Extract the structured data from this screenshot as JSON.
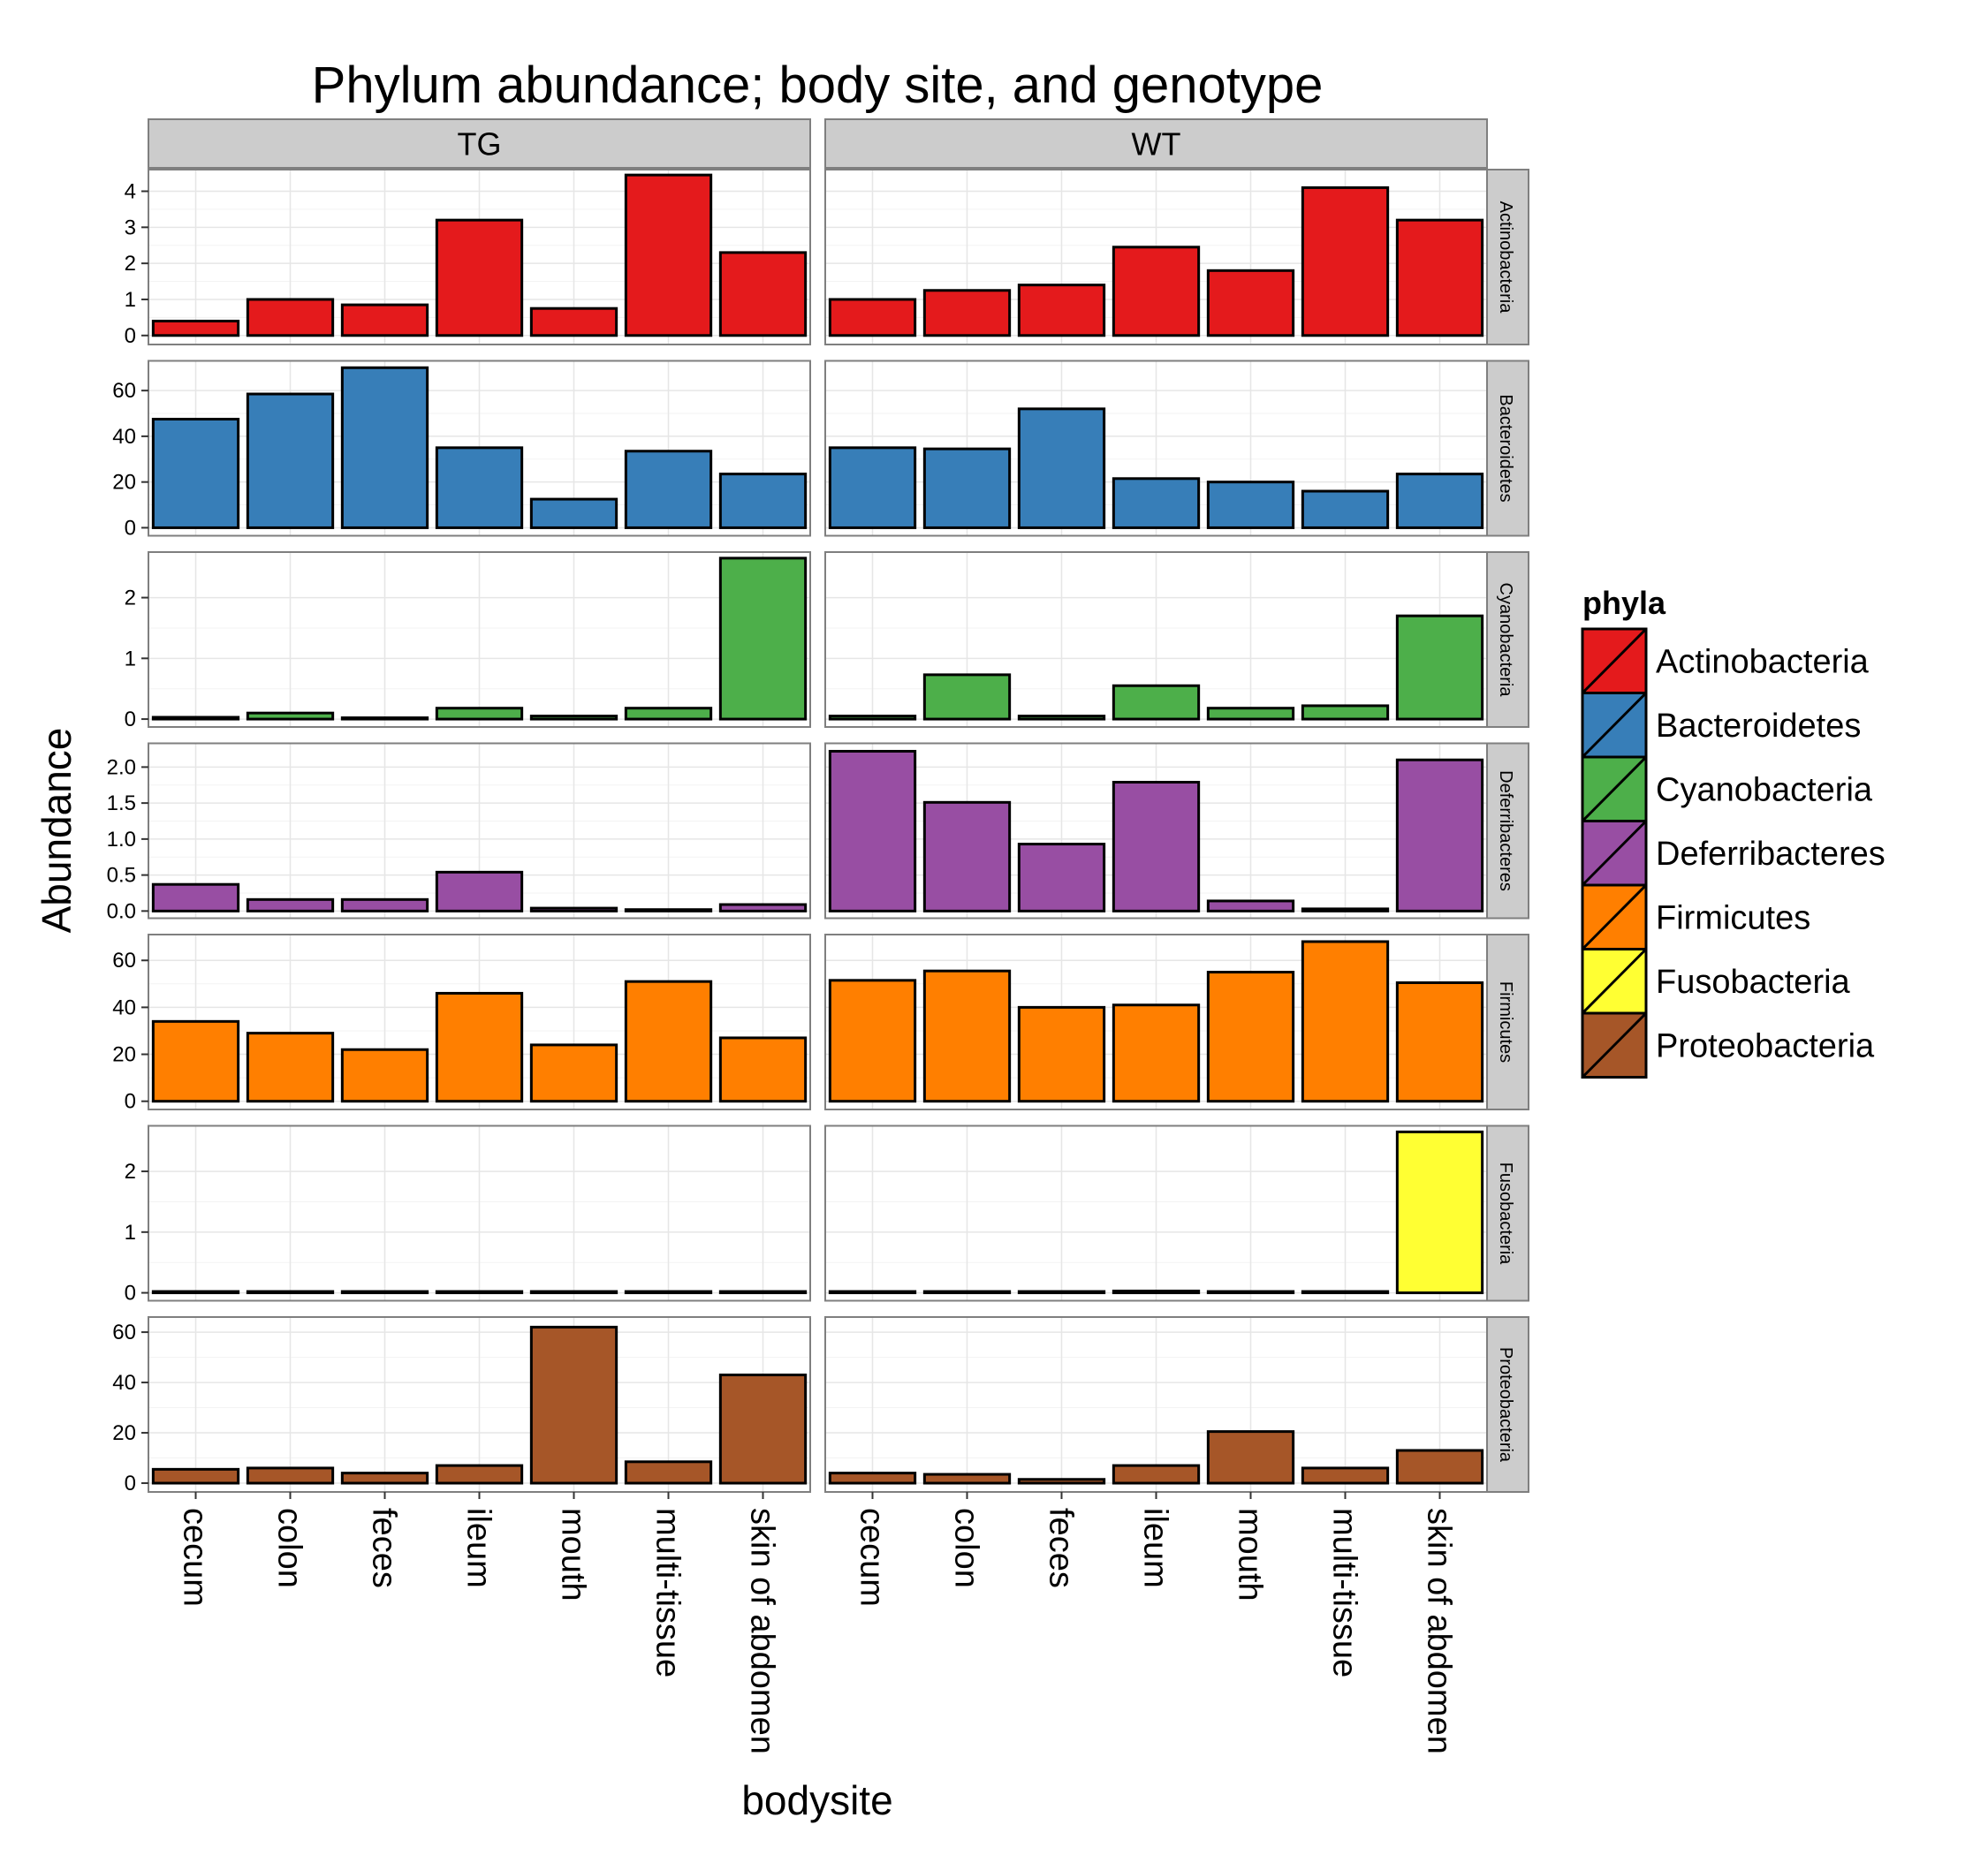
{
  "chart_data": {
    "type": "bar",
    "title": "Phylum abundance; body site, and genotype",
    "xlabel": "bodysite",
    "ylabel": "Abundance",
    "grid": true,
    "legend_position": "right",
    "legend_title": "phyla",
    "categories": [
      "cecum",
      "colon",
      "feces",
      "ileum",
      "mouth",
      "multi-tissue",
      "skin of abdomen"
    ],
    "genotypes": [
      "TG",
      "WT"
    ],
    "facets": [
      {
        "phylum": "Actinobacteria",
        "color": "#e41a1c",
        "ylim": [
          -0.25,
          4.6
        ],
        "yticks": [
          0,
          1,
          2,
          3,
          4
        ],
        "ytick_labels": [
          "0",
          "1",
          "2",
          "3",
          "4"
        ],
        "series": [
          {
            "name": "TG",
            "values": [
              0.4,
              1.0,
              0.85,
              3.2,
              0.75,
              4.45,
              2.3
            ]
          },
          {
            "name": "WT",
            "values": [
              1.0,
              1.25,
              1.4,
              2.45,
              1.8,
              4.1,
              3.2
            ]
          }
        ]
      },
      {
        "phylum": "Bacteroidetes",
        "color": "#377eb8",
        "ylim": [
          -3.5,
          73
        ],
        "yticks": [
          0,
          20,
          40,
          60
        ],
        "ytick_labels": [
          "0",
          "20",
          "40",
          "60"
        ],
        "series": [
          {
            "name": "TG",
            "values": [
              47.5,
              58.5,
              70,
              35,
              12.5,
              33.5,
              23.5
            ]
          },
          {
            "name": "WT",
            "values": [
              35,
              34.5,
              52,
              21.5,
              20,
              16,
              23.5
            ]
          }
        ]
      },
      {
        "phylum": "Cyanobacteria",
        "color": "#4daf4a",
        "ylim": [
          -0.13,
          2.75
        ],
        "yticks": [
          0,
          1,
          2
        ],
        "ytick_labels": [
          "0",
          "1",
          "2"
        ],
        "series": [
          {
            "name": "TG",
            "values": [
              0.03,
              0.1,
              0.02,
              0.18,
              0.05,
              0.18,
              2.65
            ]
          },
          {
            "name": "WT",
            "values": [
              0.05,
              0.73,
              0.05,
              0.55,
              0.18,
              0.22,
              1.7
            ]
          }
        ]
      },
      {
        "phylum": "Deferribacteres",
        "color": "#984ea3",
        "ylim": [
          -0.1,
          2.33
        ],
        "yticks": [
          0,
          0.5,
          1.0,
          1.5,
          2.0
        ],
        "ytick_labels": [
          "0.0",
          "0.5",
          "1.0",
          "1.5",
          "2.0"
        ],
        "series": [
          {
            "name": "TG",
            "values": [
              0.37,
              0.16,
              0.16,
              0.54,
              0.04,
              0.02,
              0.09
            ]
          },
          {
            "name": "WT",
            "values": [
              2.22,
              1.51,
              0.93,
              1.79,
              0.14,
              0.03,
              2.1
            ]
          }
        ]
      },
      {
        "phylum": "Firmicutes",
        "color": "#ff7f00",
        "ylim": [
          -3.5,
          71
        ],
        "yticks": [
          0,
          20,
          40,
          60
        ],
        "ytick_labels": [
          "0",
          "20",
          "40",
          "60"
        ],
        "series": [
          {
            "name": "TG",
            "values": [
              34,
              29,
              22,
              46,
              24,
              51,
              27
            ]
          },
          {
            "name": "WT",
            "values": [
              51.5,
              55.5,
              40,
              41,
              55,
              68,
              50.5
            ]
          }
        ]
      },
      {
        "phylum": "Fusobacteria",
        "color": "#ffff33",
        "ylim": [
          -0.13,
          2.75
        ],
        "yticks": [
          0,
          1,
          2
        ],
        "ytick_labels": [
          "0",
          "1",
          "2"
        ],
        "series": [
          {
            "name": "TG",
            "values": [
              0,
              0,
              0,
              0,
              0,
              0,
              0
            ]
          },
          {
            "name": "WT",
            "values": [
              0,
              0,
              0,
              0.03,
              0,
              0,
              2.65
            ]
          }
        ]
      },
      {
        "phylum": "Proteobacteria",
        "color": "#a65628",
        "ylim": [
          -3.5,
          66
        ],
        "yticks": [
          0,
          20,
          40,
          60
        ],
        "ytick_labels": [
          "0",
          "20",
          "40",
          "60"
        ],
        "series": [
          {
            "name": "TG",
            "values": [
              5.5,
              6,
              4,
              7,
              62,
              8.5,
              43
            ]
          },
          {
            "name": "WT",
            "values": [
              4,
              3.5,
              1.5,
              7,
              20.5,
              6,
              13
            ]
          }
        ]
      }
    ]
  }
}
